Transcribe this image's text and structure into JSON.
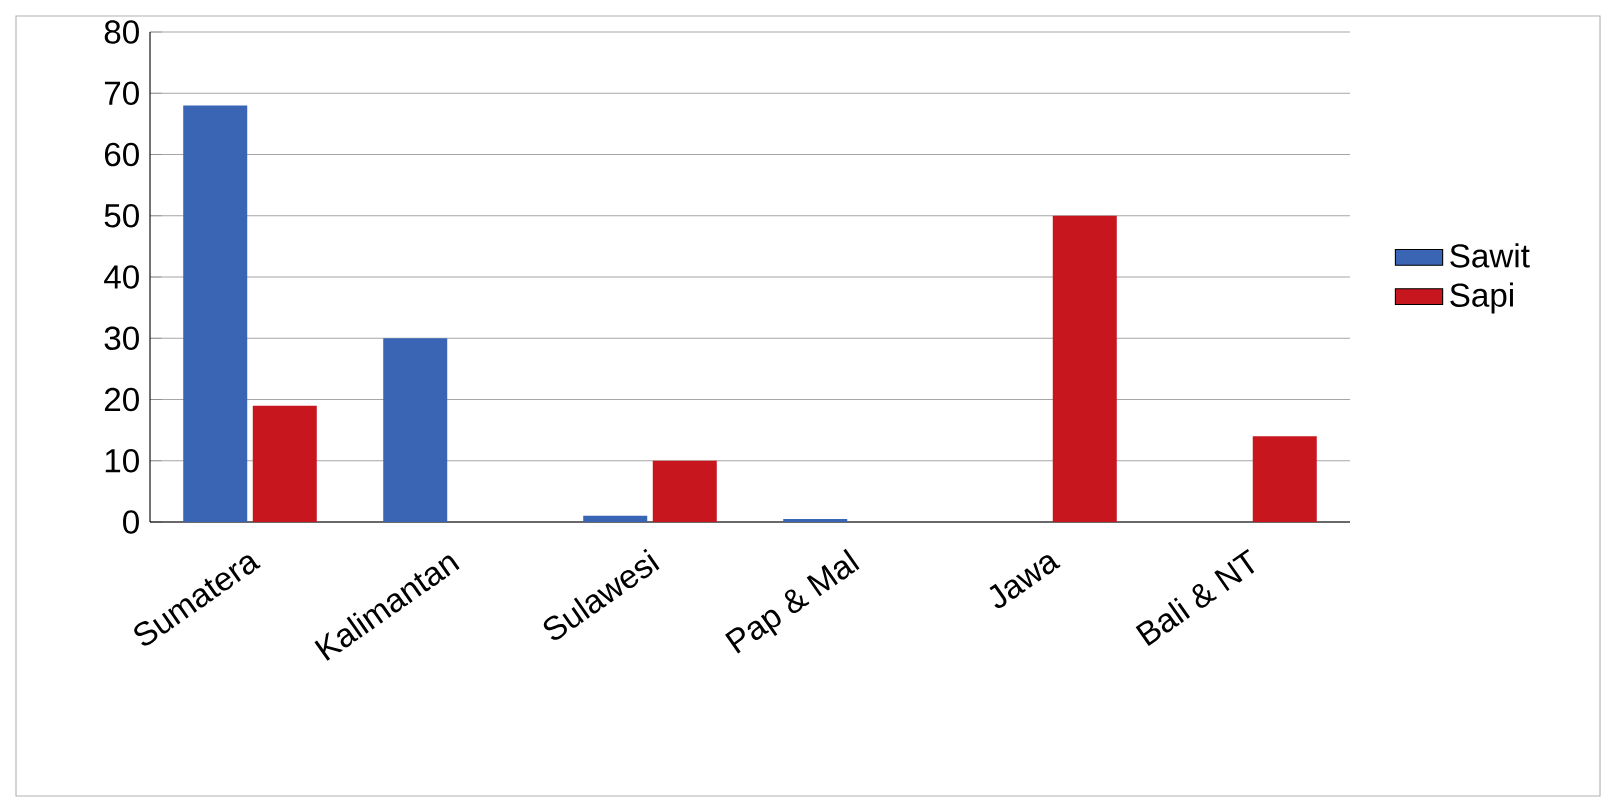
{
  "chart_data": {
    "type": "bar",
    "categories": [
      "Sumatera",
      "Kalimantan",
      "Sulawesi",
      "Pap & Mal",
      "Jawa",
      "Bali & NT"
    ],
    "series": [
      {
        "name": "Sawit",
        "color": "#3a64b4",
        "values": [
          68,
          30,
          1,
          0.5,
          0,
          0
        ]
      },
      {
        "name": "Sapi",
        "color": "#c8161e",
        "values": [
          19,
          0,
          10,
          0,
          50,
          14
        ]
      }
    ],
    "ylim": [
      0,
      80
    ],
    "yticks": [
      0,
      10,
      20,
      30,
      40,
      50,
      60,
      70,
      80
    ],
    "grid": "y",
    "legend": "right"
  }
}
